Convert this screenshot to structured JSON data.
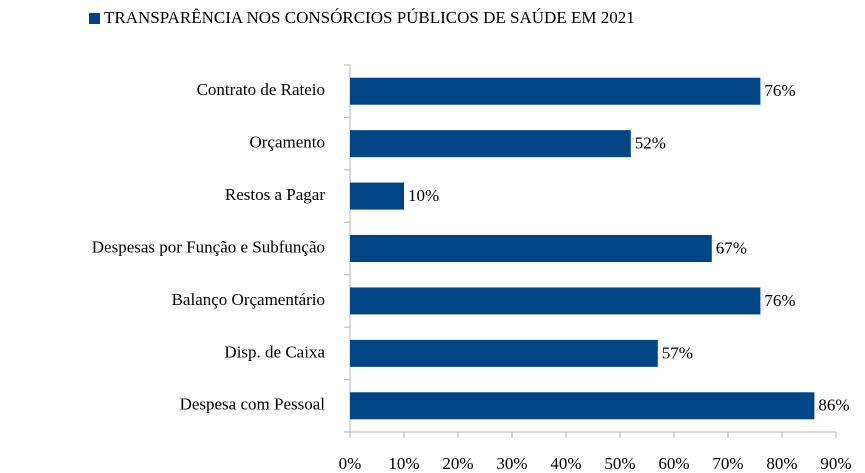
{
  "chart_data": {
    "type": "bar",
    "orientation": "horizontal",
    "categories": [
      "Contrato de Rateio",
      "Orçamento",
      "Restos a Pagar",
      "Despesas por Função e Subfunção",
      "Balanço Orçamentário",
      "Disp. de Caixa",
      "Despesa com Pessoal"
    ],
    "series": [
      {
        "name": "TRANSPARÊNCIA NOS CONSÓRCIOS PÚBLICOS DE SAÚDE EM 2021",
        "color": "#004586",
        "values": [
          76,
          52,
          10,
          67,
          76,
          57,
          86
        ],
        "value_labels": [
          "76%",
          "52%",
          "10%",
          "67%",
          "76%",
          "57%",
          "86%"
        ]
      }
    ],
    "xlim": [
      0,
      90
    ],
    "xticks": [
      {
        "value": 0,
        "label": "0%"
      },
      {
        "value": 10,
        "label": "10%"
      },
      {
        "value": 20,
        "label": "20%"
      },
      {
        "value": 30,
        "label": "30%"
      },
      {
        "value": 40,
        "label": "40%"
      },
      {
        "value": 50,
        "label": "50%"
      },
      {
        "value": 60,
        "label": "60%"
      },
      {
        "value": 70,
        "label": "70%"
      },
      {
        "value": 80,
        "label": "80%"
      },
      {
        "value": 90,
        "label": "90%"
      }
    ],
    "grid": false,
    "legend": "top"
  }
}
